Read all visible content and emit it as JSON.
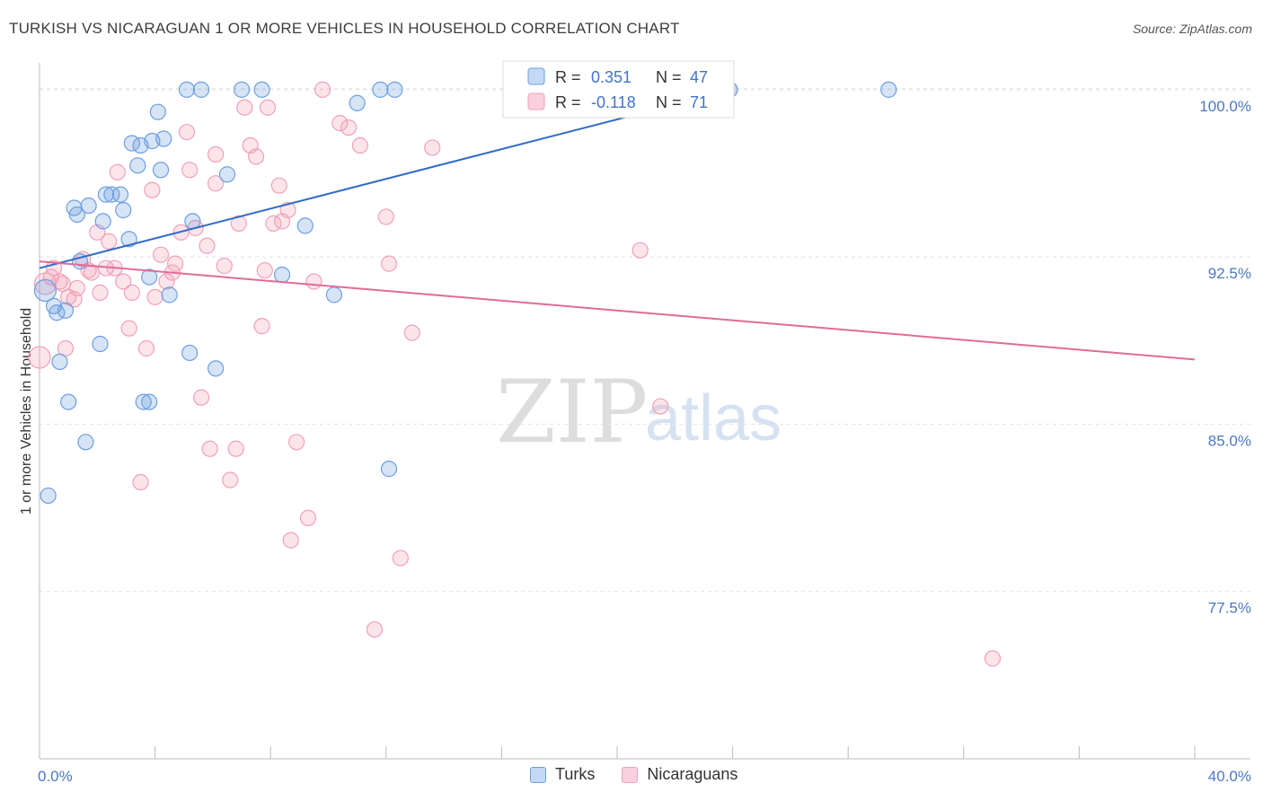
{
  "title": "TURKISH VS NICARAGUAN 1 OR MORE VEHICLES IN HOUSEHOLD CORRELATION CHART",
  "source": "Source: ZipAtlas.com",
  "watermark": {
    "zip": "ZIP",
    "atlas": "atlas"
  },
  "legend_top": {
    "r_label": "R =",
    "n_label": "N =",
    "rows": [
      {
        "name": "Turks",
        "r": "0.351",
        "n": "47"
      },
      {
        "name": "Nicaraguans",
        "r": "-0.118",
        "n": "71"
      }
    ]
  },
  "legend_bottom": [
    {
      "label": "Turks"
    },
    {
      "label": "Nicaraguans"
    }
  ],
  "chart_data": {
    "type": "scatter",
    "title": "TURKISH VS NICARAGUAN 1 OR MORE VEHICLES IN HOUSEHOLD CORRELATION CHART",
    "xlabel": "",
    "ylabel": "1 or more Vehicles in Household",
    "xlim": [
      0,
      40
    ],
    "ylim": [
      70,
      100.8
    ],
    "x_tick_labels": [
      "0.0%",
      "40.0%"
    ],
    "y_ticks": [
      77.5,
      85.0,
      92.5,
      100.0
    ],
    "y_tick_labels": [
      "77.5%",
      "85.0%",
      "92.5%",
      "100.0%"
    ],
    "grid": true,
    "colors": {
      "Turks": "#6c9fe0",
      "Nicaraguans": "#f2a0b8",
      "Turks_line": "#2f6cc7",
      "Nicaraguans_line": "#e06b98"
    },
    "series": [
      {
        "name": "Turks",
        "trend": {
          "x": [
            0,
            24.0
          ],
          "y": [
            92.0,
            100.0
          ]
        },
        "points": [
          [
            0.2,
            91.0
          ],
          [
            0.5,
            90.3
          ],
          [
            0.7,
            87.8
          ],
          [
            0.9,
            90.1
          ],
          [
            1.0,
            86.0
          ],
          [
            1.2,
            94.7
          ],
          [
            1.3,
            94.4
          ],
          [
            1.4,
            92.3
          ],
          [
            1.6,
            84.2
          ],
          [
            1.7,
            94.8
          ],
          [
            2.2,
            94.1
          ],
          [
            2.1,
            88.6
          ],
          [
            2.3,
            95.3
          ],
          [
            2.5,
            95.3
          ],
          [
            2.8,
            95.3
          ],
          [
            2.9,
            94.6
          ],
          [
            3.1,
            93.3
          ],
          [
            3.2,
            97.6
          ],
          [
            3.4,
            96.6
          ],
          [
            3.5,
            97.5
          ],
          [
            3.6,
            86.0
          ],
          [
            3.8,
            91.6
          ],
          [
            3.9,
            97.7
          ],
          [
            4.1,
            99.0
          ],
          [
            4.2,
            96.4
          ],
          [
            4.3,
            97.8
          ],
          [
            4.5,
            90.8
          ],
          [
            5.2,
            88.2
          ],
          [
            5.3,
            94.1
          ],
          [
            5.1,
            100.0
          ],
          [
            5.6,
            100.0
          ],
          [
            6.1,
            87.5
          ],
          [
            6.5,
            96.2
          ],
          [
            7.0,
            100.0
          ],
          [
            7.7,
            100.0
          ],
          [
            8.4,
            91.7
          ],
          [
            9.2,
            93.9
          ],
          [
            10.2,
            90.8
          ],
          [
            11.0,
            99.4
          ],
          [
            11.8,
            100.0
          ],
          [
            12.3,
            100.0
          ],
          [
            12.1,
            83.0
          ],
          [
            29.4,
            100.0
          ],
          [
            23.9,
            100.0
          ],
          [
            0.3,
            81.8
          ],
          [
            0.6,
            90.0
          ],
          [
            3.8,
            86.0
          ]
        ]
      },
      {
        "name": "Nicaraguans",
        "trend": {
          "x": [
            0,
            40.0
          ],
          "y": [
            92.3,
            87.9
          ]
        },
        "points": [
          [
            0.0,
            88.0
          ],
          [
            0.2,
            91.3
          ],
          [
            0.4,
            91.6
          ],
          [
            0.5,
            92.0
          ],
          [
            0.7,
            91.4
          ],
          [
            0.9,
            88.4
          ],
          [
            1.0,
            90.7
          ],
          [
            1.2,
            90.6
          ],
          [
            1.5,
            92.4
          ],
          [
            1.7,
            91.9
          ],
          [
            1.8,
            91.8
          ],
          [
            2.0,
            93.6
          ],
          [
            2.1,
            90.9
          ],
          [
            2.3,
            92.0
          ],
          [
            2.4,
            93.2
          ],
          [
            2.6,
            92.0
          ],
          [
            2.7,
            96.3
          ],
          [
            2.9,
            91.4
          ],
          [
            3.1,
            89.3
          ],
          [
            3.2,
            90.9
          ],
          [
            3.5,
            82.4
          ],
          [
            3.7,
            88.4
          ],
          [
            3.9,
            95.5
          ],
          [
            4.0,
            90.7
          ],
          [
            4.2,
            92.6
          ],
          [
            4.4,
            91.4
          ],
          [
            4.6,
            91.8
          ],
          [
            4.7,
            92.2
          ],
          [
            4.9,
            93.6
          ],
          [
            5.1,
            98.1
          ],
          [
            5.2,
            96.4
          ],
          [
            5.4,
            93.8
          ],
          [
            5.6,
            86.2
          ],
          [
            5.8,
            93.0
          ],
          [
            5.9,
            83.9
          ],
          [
            6.1,
            97.1
          ],
          [
            6.1,
            95.8
          ],
          [
            6.4,
            92.1
          ],
          [
            6.6,
            82.5
          ],
          [
            6.9,
            94.0
          ],
          [
            6.8,
            83.9
          ],
          [
            7.1,
            99.2
          ],
          [
            7.3,
            97.5
          ],
          [
            7.5,
            97.0
          ],
          [
            7.7,
            89.4
          ],
          [
            7.8,
            91.9
          ],
          [
            7.9,
            99.2
          ],
          [
            8.1,
            94.0
          ],
          [
            8.3,
            95.7
          ],
          [
            8.4,
            94.1
          ],
          [
            8.6,
            94.6
          ],
          [
            8.7,
            79.8
          ],
          [
            8.9,
            84.2
          ],
          [
            9.3,
            80.8
          ],
          [
            9.5,
            91.4
          ],
          [
            9.8,
            100.0
          ],
          [
            10.4,
            98.5
          ],
          [
            10.7,
            98.3
          ],
          [
            11.1,
            97.5
          ],
          [
            11.6,
            75.8
          ],
          [
            12.0,
            94.3
          ],
          [
            12.1,
            92.2
          ],
          [
            12.5,
            79.0
          ],
          [
            12.9,
            89.1
          ],
          [
            13.6,
            97.4
          ],
          [
            20.8,
            92.8
          ],
          [
            21.5,
            85.8
          ],
          [
            23.9,
            100.0
          ],
          [
            33.0,
            74.5
          ],
          [
            1.3,
            91.1
          ],
          [
            0.8,
            91.3
          ]
        ]
      }
    ]
  }
}
